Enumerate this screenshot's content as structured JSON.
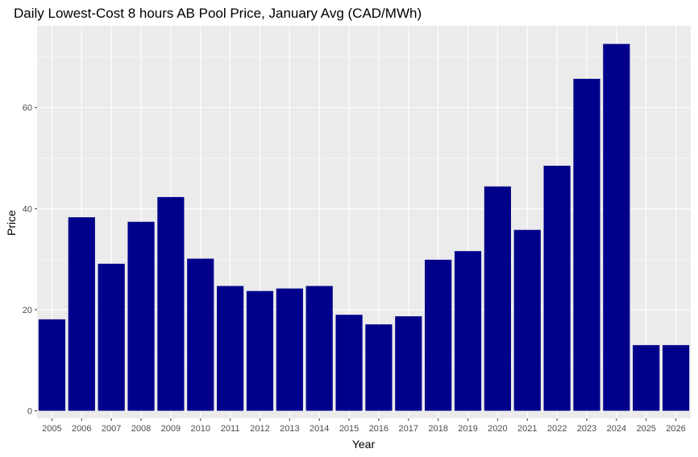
{
  "chart_data": {
    "type": "bar",
    "title": "Daily Lowest-Cost 8 hours AB Pool Price, January Avg (CAD/MWh)",
    "xlabel": "Year",
    "ylabel": "Price",
    "categories": [
      "2005",
      "2006",
      "2007",
      "2008",
      "2009",
      "2010",
      "2011",
      "2012",
      "2013",
      "2014",
      "2015",
      "2016",
      "2017",
      "2018",
      "2019",
      "2020",
      "2021",
      "2022",
      "2023",
      "2024",
      "2025",
      "2026"
    ],
    "values": [
      18.1,
      38.3,
      29.1,
      37.4,
      42.3,
      30.1,
      24.7,
      23.7,
      24.2,
      24.7,
      19.0,
      17.1,
      18.7,
      29.9,
      31.6,
      44.4,
      35.8,
      48.5,
      65.7,
      72.6,
      13.0,
      13.0
    ],
    "ylim": [
      -1.5,
      76.2
    ],
    "yticks": [
      0,
      20,
      40,
      60
    ],
    "grid": true,
    "legend": "none",
    "colors": {
      "bar": "#00008B",
      "panel": "#EBEBEB",
      "grid_major": "#FFFFFF",
      "tick_text": "#4D4D4D",
      "tick_mark": "#333333"
    }
  }
}
